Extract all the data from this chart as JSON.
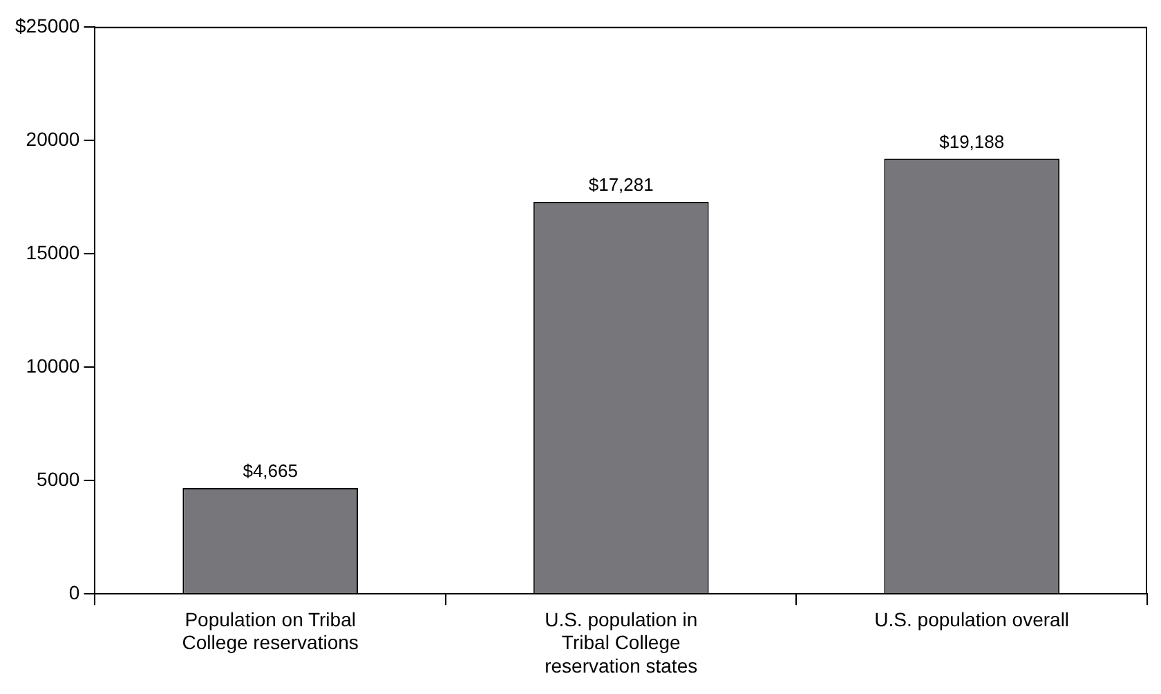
{
  "chart_data": {
    "type": "bar",
    "categories": [
      "Population on Tribal College reservations",
      "U.S. population in Tribal College reservation states",
      "U.S. population overall"
    ],
    "values": [
      4665,
      17281,
      19188
    ],
    "value_labels": [
      "$4,665",
      "$17,281",
      "$19,188"
    ],
    "color": "#77777b",
    "ylim": [
      0,
      25000
    ],
    "yticks": [
      0,
      5000,
      10000,
      15000,
      20000,
      {
        "value": 25000,
        "label": "$25000"
      }
    ],
    "grid": false,
    "legend": false
  }
}
